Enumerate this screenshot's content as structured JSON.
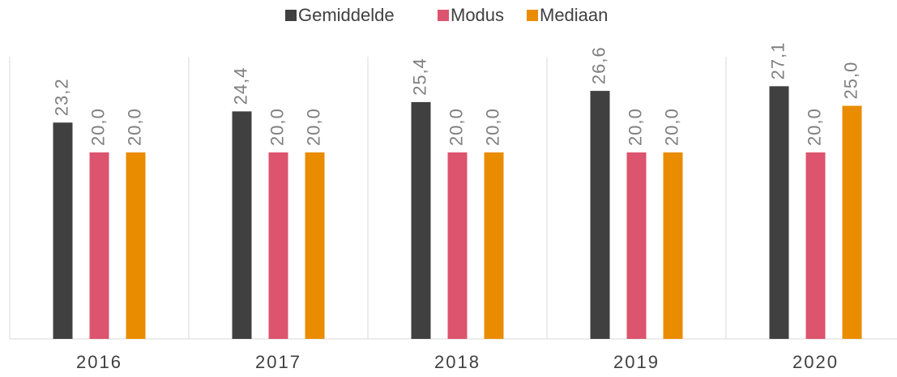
{
  "chart_data": {
    "type": "bar",
    "categories": [
      "2016",
      "2017",
      "2018",
      "2019",
      "2020"
    ],
    "series": [
      {
        "name": "Gemiddelde",
        "color": "#404040",
        "values": [
          23.2,
          24.4,
          25.4,
          26.6,
          27.1
        ],
        "value_labels": [
          "23,2",
          "24,4",
          "25,4",
          "26,6",
          "27,1"
        ]
      },
      {
        "name": "Modus",
        "color": "#dc546e",
        "values": [
          20.0,
          20.0,
          20.0,
          20.0,
          20.0
        ],
        "value_labels": [
          "20,0",
          "20,0",
          "20,0",
          "20,0",
          "20,0"
        ]
      },
      {
        "name": "Mediaan",
        "color": "#ea8c00",
        "values": [
          20.0,
          20.0,
          20.0,
          20.0,
          25.0
        ],
        "value_labels": [
          "20,0",
          "20,0",
          "20,0",
          "20,0",
          "25,0"
        ]
      }
    ],
    "ylim": [
      0,
      30
    ],
    "legend": "top"
  }
}
